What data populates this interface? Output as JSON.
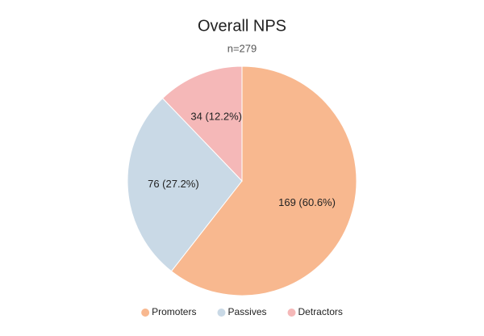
{
  "chart_data": {
    "type": "pie",
    "title": "Overall NPS",
    "subtitle": "n=279",
    "categories": [
      "Promoters",
      "Passives",
      "Detractors"
    ],
    "values": [
      169,
      76,
      34
    ],
    "value_labels": [
      "169 (60.6%)",
      "76 (27.2%)",
      "34 (12.2%)"
    ],
    "colors": [
      "#f8b88f",
      "#c9d9e6",
      "#f5b8b8"
    ],
    "legend": "bottom"
  }
}
